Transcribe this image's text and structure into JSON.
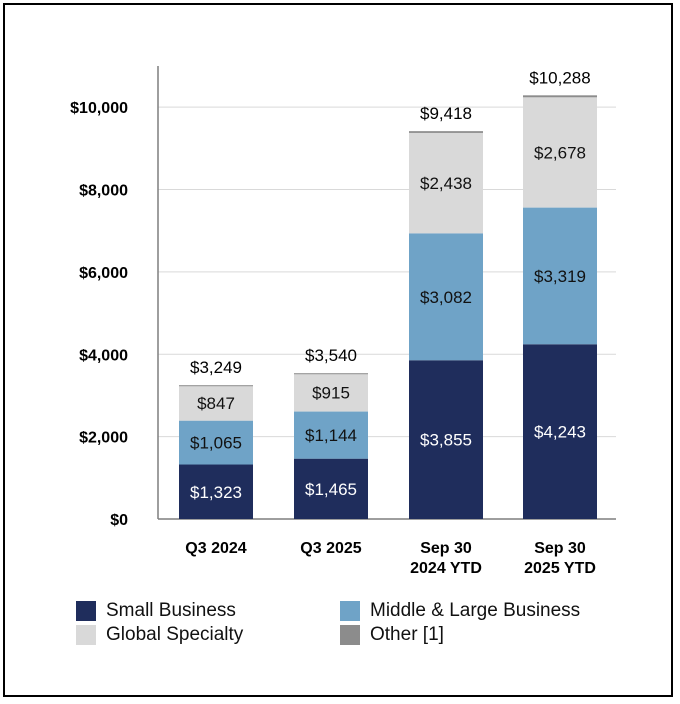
{
  "chart_data": {
    "type": "bar",
    "stacked": true,
    "categories": [
      [
        "Q3 2024"
      ],
      [
        "Q3 2025"
      ],
      [
        "Sep 30",
        "2024 YTD"
      ],
      [
        "Sep 30",
        "2025 YTD"
      ]
    ],
    "series": [
      {
        "name": "Small Business",
        "color": "#1f2d5c",
        "label_color": "#ffffff",
        "values": [
          1323,
          1465,
          3855,
          4243
        ],
        "labels": [
          "$1,323",
          "$1,465",
          "$3,855",
          "$4,243"
        ]
      },
      {
        "name": "Middle & Large Business",
        "color": "#6fa3c7",
        "label_color": "#111111",
        "values": [
          1065,
          1144,
          3082,
          3319
        ],
        "labels": [
          "$1,065",
          "$1,144",
          "$3,082",
          "$3,319"
        ]
      },
      {
        "name": "Global Specialty",
        "color": "#d9d9d9",
        "label_color": "#111111",
        "values": [
          847,
          915,
          2438,
          2678
        ],
        "labels": [
          "$847",
          "$915",
          "$2,438",
          "$2,678"
        ]
      },
      {
        "name": "Other [1]",
        "color": "#8c8c8c",
        "label_color": "#111111",
        "values": [
          14,
          16,
          43,
          48
        ],
        "labels": [
          "",
          "",
          "",
          ""
        ]
      }
    ],
    "totals": [
      "$3,249",
      "$3,540",
      "$9,418",
      "$10,288"
    ],
    "total_values": [
      3249,
      3540,
      9418,
      10288
    ],
    "y_ticks": [
      0,
      2000,
      4000,
      6000,
      8000,
      10000
    ],
    "y_tick_labels": [
      "$0",
      "$2,000",
      "$4,000",
      "$6,000",
      "$8,000",
      "$10,000"
    ],
    "ylim": [
      0,
      11000
    ],
    "gridlines": true,
    "legend_position": "bottom"
  },
  "legend": {
    "small_business": "Small Business",
    "middle_large": "Middle & Large Business",
    "global_specialty": "Global Specialty",
    "other": "Other [1]"
  },
  "colors": {
    "small_business": "#1f2d5c",
    "middle_large": "#6fa3c7",
    "global_specialty": "#d9d9d9",
    "other": "#8c8c8c"
  }
}
